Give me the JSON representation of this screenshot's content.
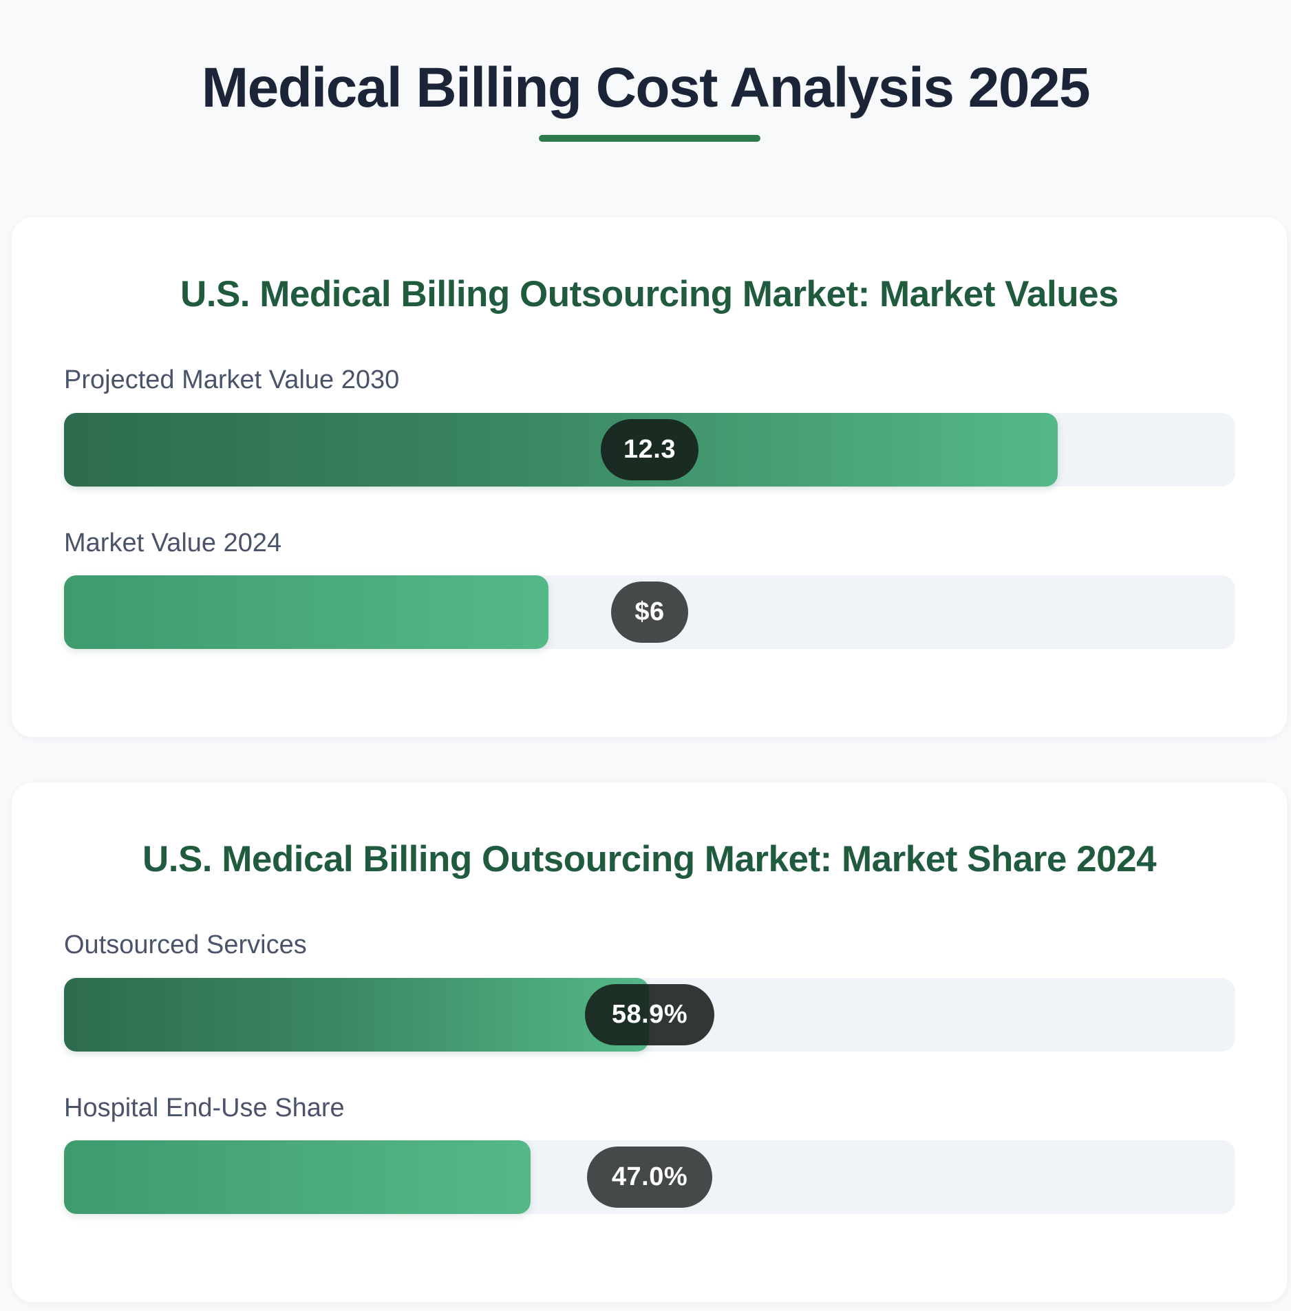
{
  "page": {
    "title": "Medical Billing Cost Analysis 2025"
  },
  "colors": {
    "title": "#1c2538",
    "accent": "#2d7a4f",
    "card_title": "#1f5b3c",
    "bar_start": "#2d6b4e",
    "bar_end": "#55b888",
    "track": "#f0f3f8"
  },
  "chart_data": [
    {
      "type": "bar",
      "orientation": "horizontal",
      "title": "U.S. Medical Billing Outsourcing Market: Market Values",
      "categories": [
        "Projected Market Value 2030",
        "Market Value 2024"
      ],
      "values": [
        12.3,
        6
      ],
      "value_labels": [
        "12.3",
        "$6"
      ],
      "xlim": [
        0,
        14.5
      ],
      "grid": false
    },
    {
      "type": "bar",
      "orientation": "horizontal",
      "title": "U.S. Medical Billing Outsourcing Market: Market Share 2024",
      "categories": [
        "Outsourced Services",
        "Hospital End-Use Share"
      ],
      "values": [
        58.9,
        47.0
      ],
      "value_labels": [
        "58.9%",
        "47.0%"
      ],
      "xlim": [
        0,
        118
      ],
      "grid": false
    }
  ]
}
